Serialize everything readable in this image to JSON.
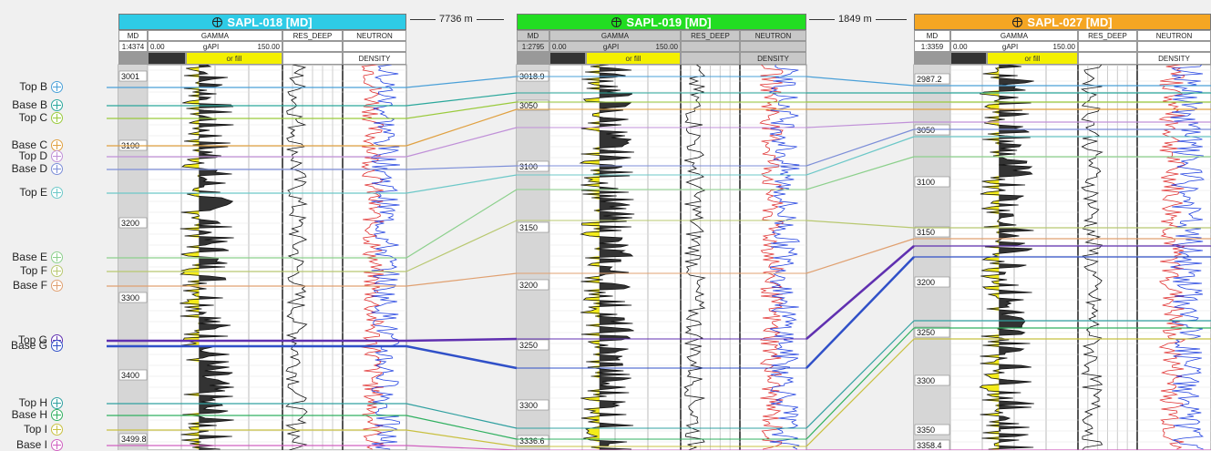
{
  "distances": {
    "d12": "7736 m",
    "d23": "1849 m"
  },
  "markers": [
    {
      "name": "Top B",
      "color": "#4aa0d8"
    },
    {
      "name": "Base B",
      "color": "#2aa79b"
    },
    {
      "name": "Top C",
      "color": "#9aca3c"
    },
    {
      "name": "Base C",
      "color": "#e0a040"
    },
    {
      "name": "Top D",
      "color": "#c090d8"
    },
    {
      "name": "Base D",
      "color": "#7c8ed8"
    },
    {
      "name": "Top E",
      "color": "#6cc8c8"
    },
    {
      "name": "Base E",
      "color": "#8cd08c"
    },
    {
      "name": "Top F",
      "color": "#b8c870"
    },
    {
      "name": "Base F",
      "color": "#e0a070"
    },
    {
      "name": "Top G",
      "color": "#6030b0"
    },
    {
      "name": "Base G",
      "color": "#3050c8"
    },
    {
      "name": "Top H",
      "color": "#30a0a0"
    },
    {
      "name": "Base H",
      "color": "#30b060"
    },
    {
      "name": "Top I",
      "color": "#c8c040"
    },
    {
      "name": "Base I",
      "color": "#d060c0"
    }
  ],
  "wells": [
    {
      "title": "SAPL-018 [MD]",
      "title_color": "#2ecbe6",
      "md_label": "MD",
      "scale": "1:4374",
      "gamma_label": "GAMMA",
      "gamma_min": "0.00",
      "gamma_unit": "gAPI",
      "gamma_max": "150.00",
      "res_label": "RES_DEEP",
      "neutron_label": "NEUTRON",
      "density_label": "DENSITY",
      "fill_label": "or fill",
      "depth_labels": [
        "3001",
        "3100",
        "3200",
        "3300",
        "3400",
        "3499.8"
      ]
    },
    {
      "title": "SAPL-019 [MD]",
      "title_color": "#22dd22",
      "md_label": "MD",
      "scale": "1:2795",
      "gamma_label": "GAMMA",
      "gamma_min": "0.00",
      "gamma_unit": "gAPI",
      "gamma_max": "150.00",
      "res_label": "RES_DEEP",
      "neutron_label": "NEUTRON",
      "density_label": "DENSITY",
      "fill_label": "or fill",
      "depth_labels": [
        "3018.9",
        "3050",
        "3100",
        "3150",
        "3200",
        "3250",
        "3300",
        "3336.6"
      ]
    },
    {
      "title": "SAPL-027 [MD]",
      "title_color": "#f5a623",
      "md_label": "MD",
      "scale": "1:3359",
      "gamma_label": "GAMMA",
      "gamma_min": "0.00",
      "gamma_unit": "gAPI",
      "gamma_max": "150.00",
      "res_label": "RES_DEEP",
      "neutron_label": "NEUTRON",
      "density_label": "DENSITY",
      "fill_label": "or fill",
      "depth_labels": [
        "2987.2",
        "3050",
        "3100",
        "3150",
        "3200",
        "3250",
        "3300",
        "3350",
        "3358.4"
      ]
    }
  ]
}
